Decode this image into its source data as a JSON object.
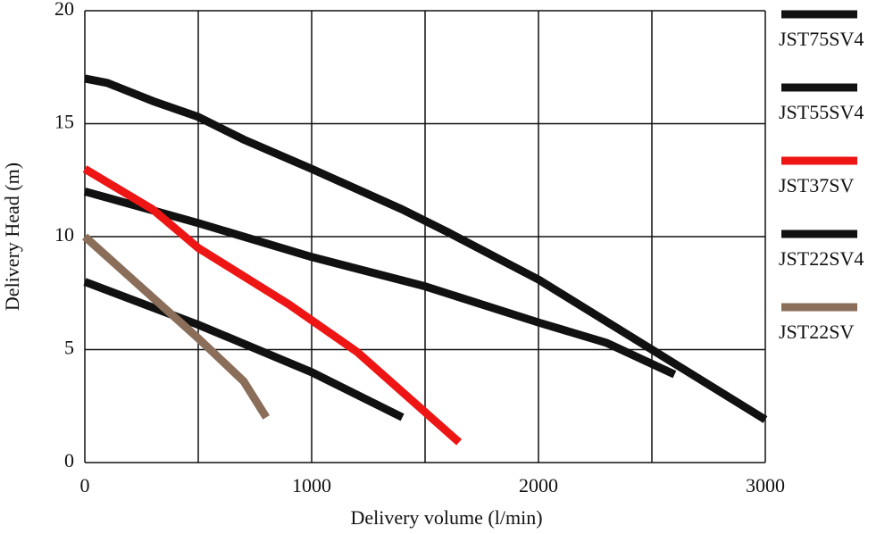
{
  "chart_data": {
    "type": "line",
    "x_label": "Delivery volume (l/min)",
    "y_label": "Delivery Head (m)",
    "xlim": [
      0,
      3000
    ],
    "xticks": [
      0,
      1000,
      2000,
      3000
    ],
    "ylim": [
      0,
      20
    ],
    "yticks": [
      0,
      5,
      10,
      15,
      20
    ],
    "grid_x": [
      0,
      500,
      1000,
      1500,
      2000,
      2500,
      3000
    ],
    "grid": true,
    "legend": "right",
    "series": [
      {
        "name": "JST75SV4",
        "color": "#111111",
        "x": [
          0,
          100,
          300,
          500,
          700,
          1000,
          1400,
          1600,
          2000,
          2500,
          3000
        ],
        "values": [
          17,
          16.8,
          16,
          15.3,
          14.3,
          13,
          11.2,
          10.2,
          8.1,
          5,
          1.9
        ]
      },
      {
        "name": "JST55SV4",
        "color": "#111111",
        "x": [
          0,
          500,
          1000,
          1500,
          2000,
          2300,
          2600
        ],
        "values": [
          12,
          10.6,
          9.1,
          7.8,
          6.2,
          5.3,
          3.9
        ]
      },
      {
        "name": "JST37SV",
        "color": "#ee1515",
        "x": [
          0,
          300,
          500,
          900,
          1200,
          1650
        ],
        "values": [
          13,
          11.2,
          9.5,
          7,
          4.9,
          0.9
        ]
      },
      {
        "name": "JST22SV4",
        "color": "#111111",
        "x": [
          0,
          500,
          1000,
          1400
        ],
        "values": [
          8,
          6.1,
          4,
          2
        ]
      },
      {
        "name": "JST22SV",
        "color": "#8b6e5a",
        "x": [
          0,
          200,
          500,
          700,
          800
        ],
        "values": [
          10,
          8.2,
          5.5,
          3.6,
          2
        ]
      }
    ]
  }
}
